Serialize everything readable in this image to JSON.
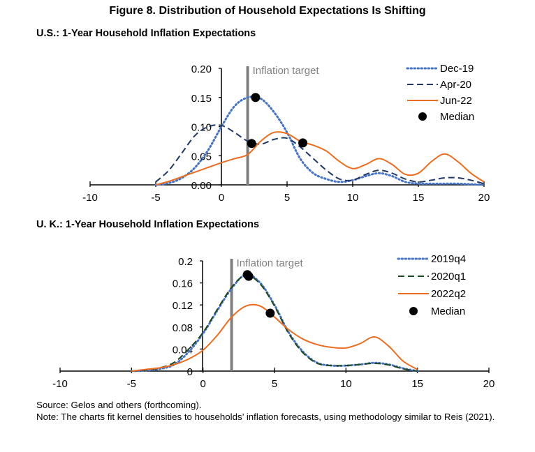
{
  "title": "Figure 8. Distribution of Household Expectations Is Shifting",
  "source": "Source: Gelos and others (forthcoming).",
  "note": "Note: The charts fit kernel densities to households’ inflation forecasts, using methodology similar to Reis (2021).",
  "chart_data": [
    {
      "type": "line",
      "title": "U.S.: 1-Year Household Inflation Expectations",
      "xlim": [
        -10,
        20
      ],
      "ylim": [
        0,
        0.2
      ],
      "xticks": [
        "-10",
        "-5",
        "0",
        "5",
        "10",
        "15",
        "20"
      ],
      "yticks": [
        "0.00",
        "0.05",
        "0.10",
        "0.15",
        "0.20"
      ],
      "grid": false,
      "legend": "top-right",
      "target": {
        "label": "Inflation target",
        "x": 2,
        "color": "#808080"
      },
      "x": [
        -5,
        -4,
        -3,
        -2,
        -1,
        0,
        1,
        2,
        3,
        4,
        5,
        6,
        7,
        8,
        9,
        10,
        11,
        12,
        13,
        14,
        15,
        16,
        17,
        18,
        19,
        20
      ],
      "series": [
        {
          "name": "Dec-19",
          "style": "dotted",
          "color": "#4472C4",
          "values": [
            0,
            0.003,
            0.012,
            0.03,
            0.06,
            0.1,
            0.135,
            0.15,
            0.148,
            0.125,
            0.09,
            0.045,
            0.02,
            0.01,
            0.005,
            0.008,
            0.015,
            0.02,
            0.015,
            0.005,
            0.002,
            0.002,
            0.002,
            0.002,
            0.001,
            0
          ]
        },
        {
          "name": "Apr-20",
          "style": "dashed",
          "color": "#1F3864",
          "values": [
            0.005,
            0.025,
            0.055,
            0.085,
            0.1,
            0.102,
            0.09,
            0.075,
            0.07,
            0.078,
            0.08,
            0.065,
            0.045,
            0.025,
            0.01,
            0.008,
            0.018,
            0.025,
            0.02,
            0.01,
            0.005,
            0.008,
            0.012,
            0.012,
            0.008,
            0.002
          ]
        },
        {
          "name": "Jun-22",
          "style": "solid",
          "color": "#ED6C1F",
          "values": [
            0,
            0.006,
            0.014,
            0.022,
            0.03,
            0.038,
            0.045,
            0.052,
            0.075,
            0.09,
            0.088,
            0.075,
            0.068,
            0.058,
            0.04,
            0.028,
            0.035,
            0.045,
            0.035,
            0.018,
            0.02,
            0.04,
            0.053,
            0.04,
            0.02,
            0.005
          ]
        }
      ],
      "median": {
        "name": "Median",
        "color": "#000000",
        "points": [
          [
            2.6,
            0.15
          ],
          [
            2.3,
            0.071
          ],
          [
            6.2,
            0.072
          ]
        ]
      }
    },
    {
      "type": "line",
      "title": "U. K.: 1-Year Household Inflation Expectations",
      "xlim": [
        -10,
        20
      ],
      "ylim": [
        0,
        0.2
      ],
      "xticks": [
        "-10",
        "-5",
        "0",
        "5",
        "10",
        "15",
        "20"
      ],
      "yticks": [
        "0",
        "0.04",
        "0.08",
        "0.12",
        "0.16",
        "0.2"
      ],
      "grid": false,
      "legend": "top-right",
      "target": {
        "label": "Inflation target",
        "x": 2,
        "color": "#808080"
      },
      "x": [
        -5,
        -4,
        -3,
        -2,
        -1,
        0,
        1,
        2,
        3,
        4,
        5,
        6,
        7,
        8,
        9,
        10,
        11,
        12,
        13,
        14,
        15
      ],
      "series": [
        {
          "name": "2019q4",
          "style": "dotted",
          "color": "#4472C4",
          "values": [
            0,
            0.001,
            0.004,
            0.012,
            0.035,
            0.068,
            0.11,
            0.15,
            0.175,
            0.16,
            0.12,
            0.07,
            0.035,
            0.015,
            0.01,
            0.01,
            0.012,
            0.015,
            0.012,
            0.005,
            0
          ]
        },
        {
          "name": "2020q1",
          "style": "dashed",
          "color": "#1E4620",
          "values": [
            0,
            0.002,
            0.006,
            0.016,
            0.04,
            0.07,
            0.112,
            0.152,
            0.174,
            0.158,
            0.118,
            0.068,
            0.033,
            0.014,
            0.01,
            0.01,
            0.012,
            0.014,
            0.011,
            0.004,
            0
          ]
        },
        {
          "name": "2022q2",
          "style": "solid",
          "color": "#ED6C1F",
          "values": [
            0,
            0.003,
            0.006,
            0.012,
            0.022,
            0.038,
            0.065,
            0.098,
            0.118,
            0.118,
            0.098,
            0.075,
            0.058,
            0.048,
            0.043,
            0.042,
            0.05,
            0.062,
            0.045,
            0.018,
            0.003
          ]
        }
      ],
      "median": {
        "name": "Median",
        "color": "#000000",
        "points": [
          [
            3.1,
            0.175
          ],
          [
            3.2,
            0.172
          ],
          [
            4.7,
            0.105
          ]
        ]
      }
    }
  ]
}
